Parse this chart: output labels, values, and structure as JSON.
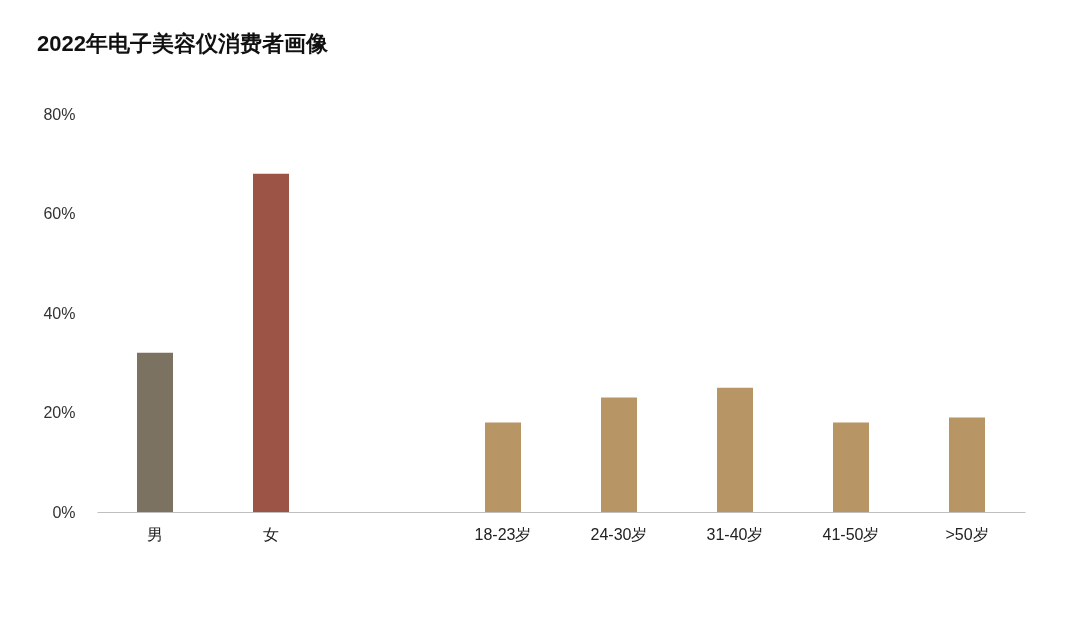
{
  "chart_data": {
    "type": "bar",
    "title": "2022年电子美容仪消费者画像",
    "categories": [
      "男",
      "女",
      null,
      "18-23岁",
      "24-30岁",
      "31-40岁",
      "41-50岁",
      ">50岁"
    ],
    "values": [
      32,
      68,
      null,
      18,
      23,
      25,
      18,
      19
    ],
    "colors": [
      "#7b7261",
      "#9b5445",
      "#b89565",
      "#b89565",
      "#b89565",
      "#b89565",
      "#b89565",
      "#b89565"
    ],
    "ylim": [
      0,
      80
    ],
    "yticks": [
      {
        "value": 0,
        "label": "0%"
      },
      {
        "value": 20,
        "label": "20%"
      },
      {
        "value": 40,
        "label": "40%"
      },
      {
        "value": 60,
        "label": "60%"
      },
      {
        "value": 80,
        "label": "80%"
      }
    ],
    "grid": false,
    "legend": false
  }
}
